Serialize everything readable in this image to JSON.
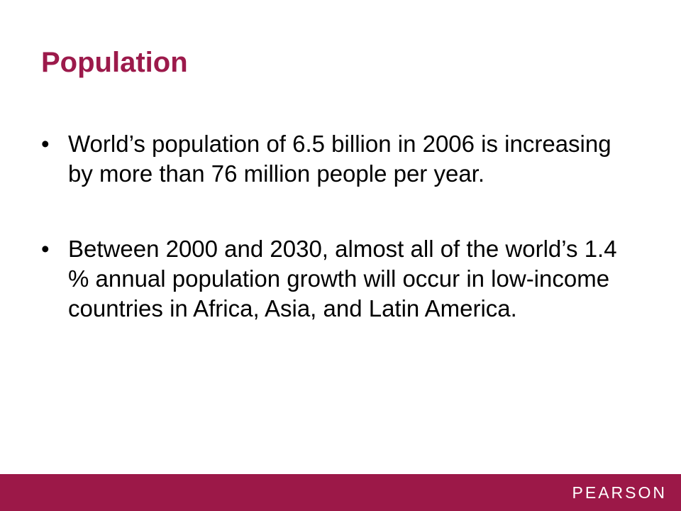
{
  "header": {
    "title": "Population"
  },
  "bullets": [
    "World’s population of 6.5 billion in 2006 is increasing by more than 76 million people per year.",
    "Between 2000 and 2030, almost all of the world’s 1.4 % annual population growth will occur in low-income countries in Africa, Asia, and Latin America."
  ],
  "footer": {
    "brand": "PEARSON"
  }
}
